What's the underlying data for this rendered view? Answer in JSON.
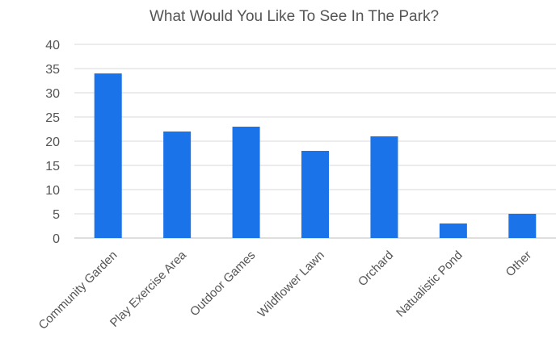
{
  "chart_data": {
    "type": "bar",
    "title": "What Would You Like To See In The Park?",
    "xlabel": "",
    "ylabel": "",
    "categories": [
      "Community Garden",
      "Play Exercise Area",
      "Outdoor Games",
      "Wildflower Lawn",
      "Orchard",
      "Natualistic Pond",
      "Other"
    ],
    "values": [
      34,
      22,
      23,
      18,
      21,
      3,
      5
    ],
    "ylim": [
      0,
      40
    ],
    "yticks": [
      0,
      5,
      10,
      15,
      20,
      25,
      30,
      35,
      40
    ],
    "grid": true,
    "legend": "none",
    "bar_color": "#1a73e8"
  }
}
